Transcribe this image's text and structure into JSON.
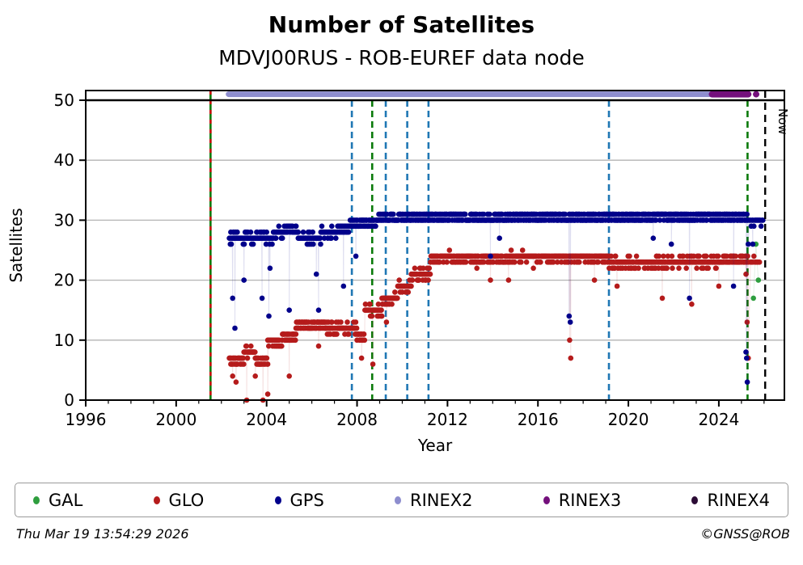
{
  "header": {
    "title": "Number of Satellites",
    "subtitle": "MDVJ00RUS - ROB-EUREF data node"
  },
  "footer": {
    "timestamp": "Thu Mar 19 13:54:29 2026",
    "credit": "©GNSS@ROB"
  },
  "legend": {
    "items": [
      {
        "label": "GAL",
        "color": "#2e9e3e"
      },
      {
        "label": "GLO",
        "color": "#b51b1b"
      },
      {
        "label": "GPS",
        "color": "#00008b"
      },
      {
        "label": "RINEX2",
        "color": "#8d8dce"
      },
      {
        "label": "RINEX3",
        "color": "#74107c"
      },
      {
        "label": "RINEX4",
        "color": "#2b0b35"
      }
    ]
  },
  "chart_data": {
    "type": "scatter",
    "title": "Number of Satellites",
    "subtitle": "MDVJ00RUS - ROB-EUREF data node",
    "xlabel": "Year",
    "ylabel": "Satellites",
    "xlim": [
      1996,
      2026.9
    ],
    "ylim": [
      0,
      51.6
    ],
    "x_ticks": [
      1996,
      2000,
      2004,
      2008,
      2012,
      2016,
      2020,
      2024
    ],
    "x_minor_step": 1,
    "y_ticks": [
      0,
      10,
      20,
      30,
      40,
      50
    ],
    "grid": {
      "color": "#b3b3b3",
      "y_values": [
        10,
        20,
        30,
        40
      ]
    },
    "max_line": {
      "y": 50,
      "color": "#000000"
    },
    "now_line": {
      "x": 2026.05,
      "label": "Now",
      "color": "#000000",
      "style": "dashed"
    },
    "event_lines": [
      {
        "x": 2001.52,
        "color": "#0a7a0a",
        "style": "solid",
        "full_height": true,
        "overlay": {
          "color": "#cc1111",
          "style": "dashed"
        }
      },
      {
        "x": 2007.77,
        "color": "#1f77b4",
        "style": "dashed"
      },
      {
        "x": 2008.67,
        "color": "#0a7a0a",
        "style": "dashed"
      },
      {
        "x": 2009.27,
        "color": "#1f77b4",
        "style": "dashed"
      },
      {
        "x": 2010.22,
        "color": "#1f77b4",
        "style": "dashed"
      },
      {
        "x": 2011.16,
        "color": "#1f77b4",
        "style": "dashed"
      },
      {
        "x": 2019.14,
        "color": "#1f77b4",
        "style": "dashed"
      },
      {
        "x": 2025.27,
        "color": "#0a7a0a",
        "style": "dashed"
      }
    ],
    "runs_format": "[year_start, year_end, typical_count, scatter_halfwidth, optional_sample_step_years]",
    "series": [
      {
        "name": "GAL",
        "color": "#2e9e3e",
        "points": [
          [
            2025.53,
            17
          ],
          [
            2025.64,
            26
          ],
          [
            2025.75,
            20
          ]
        ]
      },
      {
        "name": "GLO",
        "color": "#b51b1b",
        "runs": [
          [
            2002.35,
            2003.0,
            6.5,
            0.8
          ],
          [
            2003.0,
            2003.5,
            8,
            0.8
          ],
          [
            2003.5,
            2004.05,
            6.5,
            0.9
          ],
          [
            2004.05,
            2004.7,
            9.5,
            1
          ],
          [
            2004.7,
            2005.3,
            10.5,
            1
          ],
          [
            2005.3,
            2006.6,
            12.5,
            1
          ],
          [
            2006.6,
            2008.0,
            12,
            1.2
          ],
          [
            2008.0,
            2008.35,
            10.5,
            1
          ],
          [
            2008.35,
            2009.1,
            15,
            1
          ],
          [
            2009.1,
            2009.8,
            17,
            1
          ],
          [
            2009.8,
            2010.4,
            19,
            1
          ],
          [
            2010.4,
            2011.25,
            21,
            1.2
          ],
          [
            2011.25,
            2019.15,
            23.7,
            0.9
          ],
          [
            2019.15,
            2021.0,
            22.8,
            1.1
          ],
          [
            2021.0,
            2024.2,
            23,
            1.2
          ],
          [
            2024.2,
            2025.3,
            23.5,
            0.8
          ],
          [
            2025.4,
            2025.8,
            23,
            0.9,
            0.05
          ]
        ],
        "outliers": [
          [
            2002.5,
            4
          ],
          [
            2002.65,
            3
          ],
          [
            2003.12,
            0
          ],
          [
            2003.5,
            4
          ],
          [
            2003.84,
            0
          ],
          [
            2004.05,
            1
          ],
          [
            2005.0,
            4
          ],
          [
            2006.3,
            9
          ],
          [
            2008.2,
            7
          ],
          [
            2008.7,
            6
          ],
          [
            2009.3,
            13
          ],
          [
            2013.3,
            22
          ],
          [
            2013.9,
            20
          ],
          [
            2014.7,
            20
          ],
          [
            2015.8,
            22
          ],
          [
            2017.4,
            10
          ],
          [
            2017.45,
            7
          ],
          [
            2018.5,
            20
          ],
          [
            2019.5,
            19
          ],
          [
            2021.5,
            17
          ],
          [
            2022.8,
            16
          ],
          [
            2024.0,
            19
          ],
          [
            2025.2,
            21
          ],
          [
            2025.25,
            13
          ],
          [
            2025.3,
            7
          ]
        ]
      },
      {
        "name": "GPS",
        "color": "#00008b",
        "runs": [
          [
            2002.35,
            2004.3,
            27,
            1
          ],
          [
            2004.3,
            2004.8,
            28,
            1
          ],
          [
            2004.8,
            2005.4,
            28.5,
            1
          ],
          [
            2005.4,
            2006.4,
            27,
            1
          ],
          [
            2006.4,
            2007.1,
            28,
            1
          ],
          [
            2007.1,
            2007.7,
            28.5,
            1
          ],
          [
            2007.7,
            2008.9,
            29.5,
            1
          ],
          [
            2008.9,
            2011.2,
            30.5,
            0.8
          ],
          [
            2011.2,
            2019.15,
            30.5,
            0.8
          ],
          [
            2019.15,
            2025.3,
            30.5,
            0.8
          ],
          [
            2025.35,
            2025.95,
            30,
            1,
            0.04
          ]
        ],
        "outliers": [
          [
            2002.5,
            17
          ],
          [
            2002.6,
            12
          ],
          [
            2003.0,
            20
          ],
          [
            2003.8,
            17
          ],
          [
            2004.1,
            14
          ],
          [
            2004.15,
            22
          ],
          [
            2005.0,
            15
          ],
          [
            2006.2,
            21
          ],
          [
            2006.3,
            15
          ],
          [
            2007.4,
            19
          ],
          [
            2007.95,
            24
          ],
          [
            2013.9,
            24
          ],
          [
            2014.3,
            27
          ],
          [
            2017.38,
            14
          ],
          [
            2017.43,
            13
          ],
          [
            2021.1,
            27
          ],
          [
            2021.9,
            26
          ],
          [
            2022.7,
            17
          ],
          [
            2024.65,
            19
          ],
          [
            2025.2,
            8
          ],
          [
            2025.23,
            7
          ],
          [
            2025.26,
            3
          ],
          [
            2025.3,
            26
          ],
          [
            2025.5,
            26
          ]
        ]
      },
      {
        "name": "RINEX2",
        "color": "#8d8dce",
        "band_y": 51,
        "bands": [
          [
            2002.32,
            2024.05
          ]
        ]
      },
      {
        "name": "RINEX3",
        "color": "#74107c",
        "band_y": 51,
        "bands": [
          [
            2023.7,
            2025.3
          ]
        ],
        "points": [
          [
            2025.65,
            51
          ]
        ]
      },
      {
        "name": "RINEX4",
        "color": "#2b0b35",
        "points": []
      }
    ]
  }
}
